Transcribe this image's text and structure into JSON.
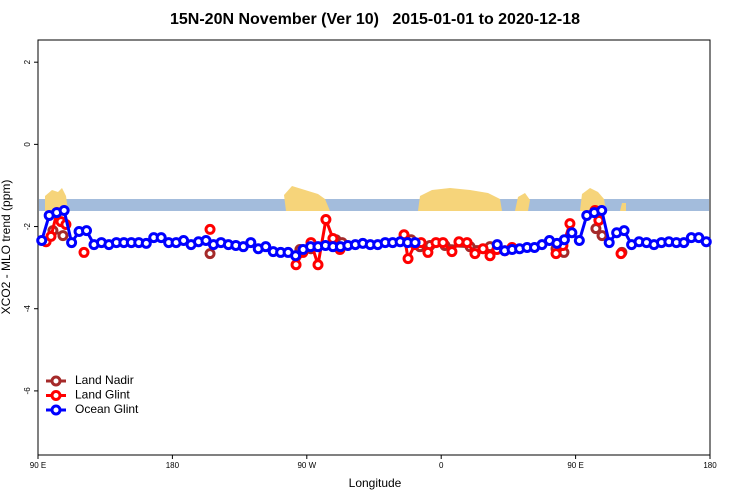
{
  "chart_data": {
    "type": "line",
    "title": "15N-20N November (Ver 10)   2015-01-01 to 2020-12-18",
    "xlabel": "Longitude",
    "ylabel": "XCO2 - MLO trend (ppm)",
    "xlim": [
      90,
      540
    ],
    "ylim": [
      -7.56,
      2.54
    ],
    "xticks": [
      {
        "value": 90,
        "label": "90 E"
      },
      {
        "value": 180,
        "label": "180"
      },
      {
        "value": 270,
        "label": "90 W"
      },
      {
        "value": 360,
        "label": "0"
      },
      {
        "value": 450,
        "label": "90 E"
      },
      {
        "value": 540,
        "label": "180"
      }
    ],
    "yticks": [
      2,
      0,
      -2,
      -4,
      -6
    ],
    "legend": "lower left",
    "series": [
      {
        "name": "Land Nadir",
        "color": "#a52a2a",
        "x": [
          100.0,
          106.7,
          null,
          205.2,
          null,
          265.4,
          272.8,
          289.5,
          293.6,
          null,
          339.8,
          345.8,
          352.5,
          362.5,
          379.3,
          392.7,
          null,
          436.9,
          442.2,
          null,
          463.6,
          467.7,
          null,
          481.0
        ],
        "values": [
          -2.1,
          -2.22,
          null,
          -2.66,
          null,
          -2.56,
          -2.54,
          -2.32,
          -2.39,
          null,
          -2.32,
          -2.49,
          -2.46,
          -2.46,
          -2.49,
          -2.49,
          null,
          -2.54,
          -2.63,
          null,
          -2.05,
          -2.22,
          null,
          -2.63
        ]
      },
      {
        "name": "Land Glint",
        "color": "#ff0000",
        "x": [
          95.4,
          98.7,
          102.7,
          105.4,
          108.7,
          null,
          120.8,
          null,
          205.2,
          null,
          262.8,
          267.4,
          272.8,
          277.5,
          282.8,
          287.5,
          292.2,
          null,
          335.1,
          337.8,
          342.4,
          346.5,
          351.1,
          356.5,
          361.2,
          367.2,
          371.9,
          377.3,
          382.6,
          388.0,
          392.7,
          397.3,
          402.7,
          407.4,
          null,
          436.9,
          441.5,
          446.2,
          null,
          463.0,
          465.6,
          null,
          480.4
        ],
        "values": [
          -2.37,
          -2.24,
          -1.66,
          -1.88,
          -1.95,
          null,
          -2.63,
          null,
          -2.07,
          null,
          -2.93,
          -2.63,
          -2.39,
          -2.93,
          -1.83,
          -2.29,
          -2.56,
          null,
          -2.2,
          -2.78,
          -2.44,
          -2.39,
          -2.63,
          -2.39,
          -2.39,
          -2.61,
          -2.37,
          -2.39,
          -2.66,
          -2.54,
          -2.71,
          -2.56,
          -2.59,
          -2.51,
          null,
          -2.66,
          -2.46,
          -1.93,
          null,
          -1.61,
          -1.85,
          null,
          -2.66
        ]
      },
      {
        "name": "Ocean Glint",
        "color": "#0000ff",
        "x": [
          92.5,
          97.5,
          102.5,
          107.5,
          112.5,
          117.5,
          122.5,
          127.5,
          132.5,
          137.5,
          142.5,
          147.5,
          152.5,
          157.5,
          162.5,
          167.5,
          172.5,
          177.5,
          182.5,
          187.5,
          192.5,
          197.5,
          202.5,
          207.5,
          212.5,
          217.5,
          222.5,
          227.5,
          232.5,
          237.5,
          242.5,
          247.5,
          252.5,
          257.5,
          262.5,
          267.5,
          272.5,
          277.5,
          282.5,
          287.5,
          292.5,
          297.5,
          302.5,
          307.5,
          312.5,
          317.5,
          322.5,
          327.5,
          332.5,
          337.5,
          342.5,
          null,
          397.5,
          402.5,
          407.5,
          412.5,
          417.5,
          422.5,
          427.5,
          432.5,
          437.5,
          442.5,
          447.5,
          452.5,
          457.5,
          462.5,
          467.5,
          472.5,
          477.5,
          482.5,
          487.5,
          492.5,
          497.5,
          502.5,
          507.5,
          512.5,
          517.5,
          522.5,
          527.5,
          532.5,
          537.5
        ],
        "values": [
          -2.34,
          -1.73,
          -1.66,
          -1.61,
          -2.39,
          -2.12,
          -2.1,
          -2.44,
          -2.39,
          -2.44,
          -2.39,
          -2.39,
          -2.39,
          -2.39,
          -2.41,
          -2.27,
          -2.27,
          -2.39,
          -2.39,
          -2.34,
          -2.44,
          -2.37,
          -2.34,
          -2.44,
          -2.39,
          -2.44,
          -2.46,
          -2.49,
          -2.39,
          -2.54,
          -2.49,
          -2.61,
          -2.63,
          -2.63,
          -2.71,
          -2.56,
          -2.49,
          -2.49,
          -2.46,
          -2.49,
          -2.49,
          -2.46,
          -2.44,
          -2.41,
          -2.44,
          -2.44,
          -2.39,
          -2.39,
          -2.37,
          -2.39,
          -2.39,
          null,
          -2.44,
          -2.59,
          -2.56,
          -2.54,
          -2.51,
          -2.51,
          -2.44,
          -2.34,
          -2.41,
          -2.32,
          -2.15,
          -2.34,
          -1.73,
          -1.66,
          -1.61,
          -2.39,
          -2.15,
          -2.1,
          -2.44,
          -2.37,
          -2.39,
          -2.44,
          -2.39,
          -2.37,
          -2.39,
          -2.39,
          -2.27,
          -2.27,
          -2.37
        ]
      }
    ]
  }
}
